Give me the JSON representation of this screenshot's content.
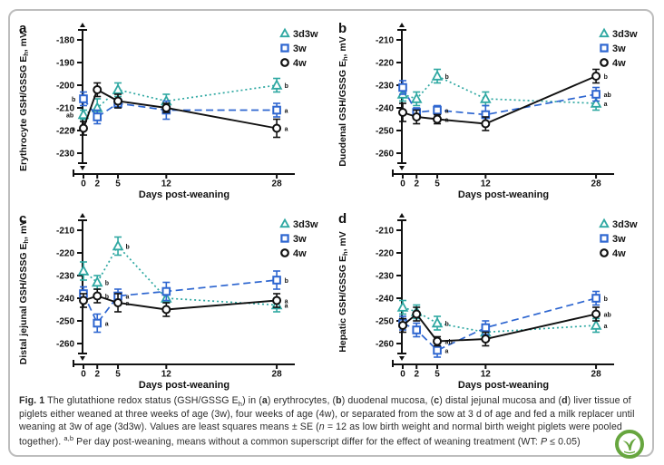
{
  "figure": {
    "logo_color": "#67a63f",
    "legend": [
      {
        "label": "3d3w",
        "marker": "triangle",
        "color": "#2fa8a2"
      },
      {
        "label": "3w",
        "marker": "square",
        "color": "#2e66d0"
      },
      {
        "label": "4w",
        "marker": "circle",
        "color": "#111111"
      }
    ],
    "caption_segments": [
      {
        "text": "Fig. 1",
        "bold": true
      },
      {
        "text": " The glutathione redox status (GSH/GSSG E"
      },
      {
        "text": "h",
        "sub": true
      },
      {
        "text": ") in ("
      },
      {
        "text": "a",
        "bold": true
      },
      {
        "text": ") erythrocytes, ("
      },
      {
        "text": "b",
        "bold": true
      },
      {
        "text": ") duodenal mucosa, ("
      },
      {
        "text": "c",
        "bold": true
      },
      {
        "text": ") distal jejunal mucosa and ("
      },
      {
        "text": "d",
        "bold": true
      },
      {
        "text": ") liver tissue of piglets either weaned at three weeks of age (3w), four weeks of age (4w), or separated from the sow at 3 d of age and fed a milk replacer until weaning at 3w of age (3d3w). Values are least squares means ± SE ("
      },
      {
        "text": "n",
        "italic": true
      },
      {
        "text": " = 12 as low birth weight and normal birth weight piglets were pooled together). "
      },
      {
        "text": "a,b",
        "sup": true
      },
      {
        "text": " Per day post-weaning, means without a common superscript differ for the effect of weaning treatment (WT: "
      },
      {
        "text": "P",
        "italic": true
      },
      {
        "text": " ≤ 0.05)"
      }
    ]
  },
  "chart_data": [
    {
      "type": "line",
      "panel": "a",
      "ylabel_pre": "Erythrocyte GSH/GSSG E",
      "ylabel_sub": "h",
      "ylabel_post": ", mV",
      "xlabel": "Days post-weaning",
      "yticks": [
        -180,
        -190,
        -200,
        -210,
        -220,
        -230
      ],
      "x": [
        0,
        2,
        5,
        12,
        28
      ],
      "series": [
        {
          "name": "3d3w",
          "marker": "triangle",
          "color": "#2fa8a2",
          "linestyle": "dotted",
          "values": [
            -213,
            -210,
            -202,
            -207,
            -200
          ],
          "se": [
            2,
            4,
            3,
            3,
            3
          ]
        },
        {
          "name": "3w",
          "marker": "square",
          "color": "#2e66d0",
          "linestyle": "dashed",
          "values": [
            -206,
            -214,
            -208,
            -211,
            -211
          ],
          "se": [
            3,
            3,
            2,
            4,
            3
          ]
        },
        {
          "name": "4w",
          "marker": "circle",
          "color": "#111111",
          "linestyle": "solid",
          "values": [
            -219,
            -202,
            -207,
            -210,
            -219
          ],
          "se": [
            3,
            3,
            3,
            2,
            4
          ]
        }
      ],
      "point_labels": [
        {
          "series": "3w",
          "day": 0,
          "text": "b",
          "side": "left"
        },
        {
          "series": "3d3w",
          "day": 0,
          "text": "ab",
          "side": "left"
        },
        {
          "series": "4w",
          "day": 0,
          "text": "a",
          "side": "left"
        },
        {
          "series": "3d3w",
          "day": 28,
          "text": "b",
          "side": "right"
        },
        {
          "series": "3w",
          "day": 28,
          "text": "a",
          "side": "right"
        },
        {
          "series": "4w",
          "day": 28,
          "text": "a",
          "side": "right"
        }
      ]
    },
    {
      "type": "line",
      "panel": "b",
      "ylabel_pre": "Duodenal GSH/GSSG E",
      "ylabel_sub": "h",
      "ylabel_post": ", mV",
      "xlabel": "Days post-weaning",
      "yticks": [
        -210,
        -220,
        -230,
        -240,
        -250,
        -260
      ],
      "x": [
        0,
        2,
        5,
        12,
        28
      ],
      "series": [
        {
          "name": "3d3w",
          "marker": "triangle",
          "color": "#2fa8a2",
          "linestyle": "dotted",
          "values": [
            -234,
            -236,
            -226,
            -236,
            -238
          ],
          "se": [
            3,
            3,
            3,
            3,
            3
          ]
        },
        {
          "name": "3w",
          "marker": "square",
          "color": "#2e66d0",
          "linestyle": "dashed",
          "values": [
            -231,
            -242,
            -241,
            -243,
            -234
          ],
          "se": [
            3,
            2,
            2,
            4,
            3
          ]
        },
        {
          "name": "4w",
          "marker": "circle",
          "color": "#111111",
          "linestyle": "solid",
          "values": [
            -242,
            -244,
            -245,
            -247,
            -226
          ],
          "se": [
            4,
            3,
            2,
            3,
            3
          ]
        }
      ],
      "point_labels": [
        {
          "series": "3d3w",
          "day": 5,
          "text": "b",
          "side": "right"
        },
        {
          "series": "3w",
          "day": 5,
          "text": "a",
          "side": "right"
        },
        {
          "series": "4w",
          "day": 5,
          "text": "a",
          "side": "right"
        },
        {
          "series": "4w",
          "day": 28,
          "text": "b",
          "side": "right"
        },
        {
          "series": "3w",
          "day": 28,
          "text": "ab",
          "side": "right"
        },
        {
          "series": "3d3w",
          "day": 28,
          "text": "a",
          "side": "right"
        }
      ]
    },
    {
      "type": "line",
      "panel": "c",
      "ylabel_pre": "Distal jejunal GSH/GSSG E",
      "ylabel_sub": "h",
      "ylabel_post": ", mV",
      "xlabel": "Days post-weaning",
      "yticks": [
        -210,
        -220,
        -230,
        -240,
        -250,
        -260
      ],
      "x": [
        0,
        2,
        5,
        12,
        28
      ],
      "series": [
        {
          "name": "3d3w",
          "marker": "triangle",
          "color": "#2fa8a2",
          "linestyle": "dotted",
          "values": [
            -228,
            -233,
            -217,
            -240,
            -243
          ],
          "se": [
            4,
            3,
            4,
            2,
            3
          ]
        },
        {
          "name": "3w",
          "marker": "square",
          "color": "#2e66d0",
          "linestyle": "dashed",
          "values": [
            -238,
            -251,
            -239,
            -237,
            -232
          ],
          "se": [
            3,
            4,
            3,
            4,
            4
          ]
        },
        {
          "name": "4w",
          "marker": "circle",
          "color": "#111111",
          "linestyle": "solid",
          "values": [
            -241,
            -239,
            -242,
            -245,
            -241
          ],
          "se": [
            3,
            3,
            4,
            3,
            3
          ]
        }
      ],
      "point_labels": [
        {
          "series": "3d3w",
          "day": 2,
          "text": "b",
          "side": "right"
        },
        {
          "series": "4w",
          "day": 2,
          "text": "b",
          "side": "right"
        },
        {
          "series": "3w",
          "day": 2,
          "text": "a",
          "side": "right"
        },
        {
          "series": "3d3w",
          "day": 5,
          "text": "b",
          "side": "right"
        },
        {
          "series": "3w",
          "day": 5,
          "text": "a",
          "side": "right"
        },
        {
          "series": "4w",
          "day": 5,
          "text": "a",
          "side": "right"
        },
        {
          "series": "3w",
          "day": 28,
          "text": "b",
          "side": "right"
        },
        {
          "series": "4w",
          "day": 28,
          "text": "a",
          "side": "right"
        },
        {
          "series": "3d3w",
          "day": 28,
          "text": "a",
          "side": "right"
        }
      ]
    },
    {
      "type": "line",
      "panel": "d",
      "ylabel_pre": "Hepatic GSH/GSSG E",
      "ylabel_sub": "h",
      "ylabel_post": ", mV",
      "xlabel": "Days post-weaning",
      "yticks": [
        -210,
        -220,
        -230,
        -240,
        -250,
        -260
      ],
      "x": [
        0,
        2,
        5,
        12,
        28
      ],
      "series": [
        {
          "name": "3d3w",
          "marker": "triangle",
          "color": "#2fa8a2",
          "linestyle": "dotted",
          "values": [
            -244,
            -246,
            -251,
            -255,
            -252
          ],
          "se": [
            3,
            3,
            3,
            2,
            3
          ]
        },
        {
          "name": "3w",
          "marker": "square",
          "color": "#2e66d0",
          "linestyle": "dashed",
          "values": [
            -251,
            -254,
            -263,
            -253,
            -240
          ],
          "se": [
            3,
            3,
            3,
            3,
            3
          ]
        },
        {
          "name": "4w",
          "marker": "circle",
          "color": "#111111",
          "linestyle": "solid",
          "values": [
            -252,
            -247,
            -259,
            -258,
            -247
          ],
          "se": [
            3,
            3,
            2,
            3,
            3
          ]
        }
      ],
      "point_labels": [
        {
          "series": "3d3w",
          "day": 5,
          "text": "b",
          "side": "right"
        },
        {
          "series": "4w",
          "day": 5,
          "text": "ab",
          "side": "right"
        },
        {
          "series": "3w",
          "day": 5,
          "text": "a",
          "side": "right"
        },
        {
          "series": "3w",
          "day": 28,
          "text": "b",
          "side": "right"
        },
        {
          "series": "4w",
          "day": 28,
          "text": "ab",
          "side": "right"
        },
        {
          "series": "3d3w",
          "day": 28,
          "text": "a",
          "side": "right"
        }
      ]
    }
  ]
}
